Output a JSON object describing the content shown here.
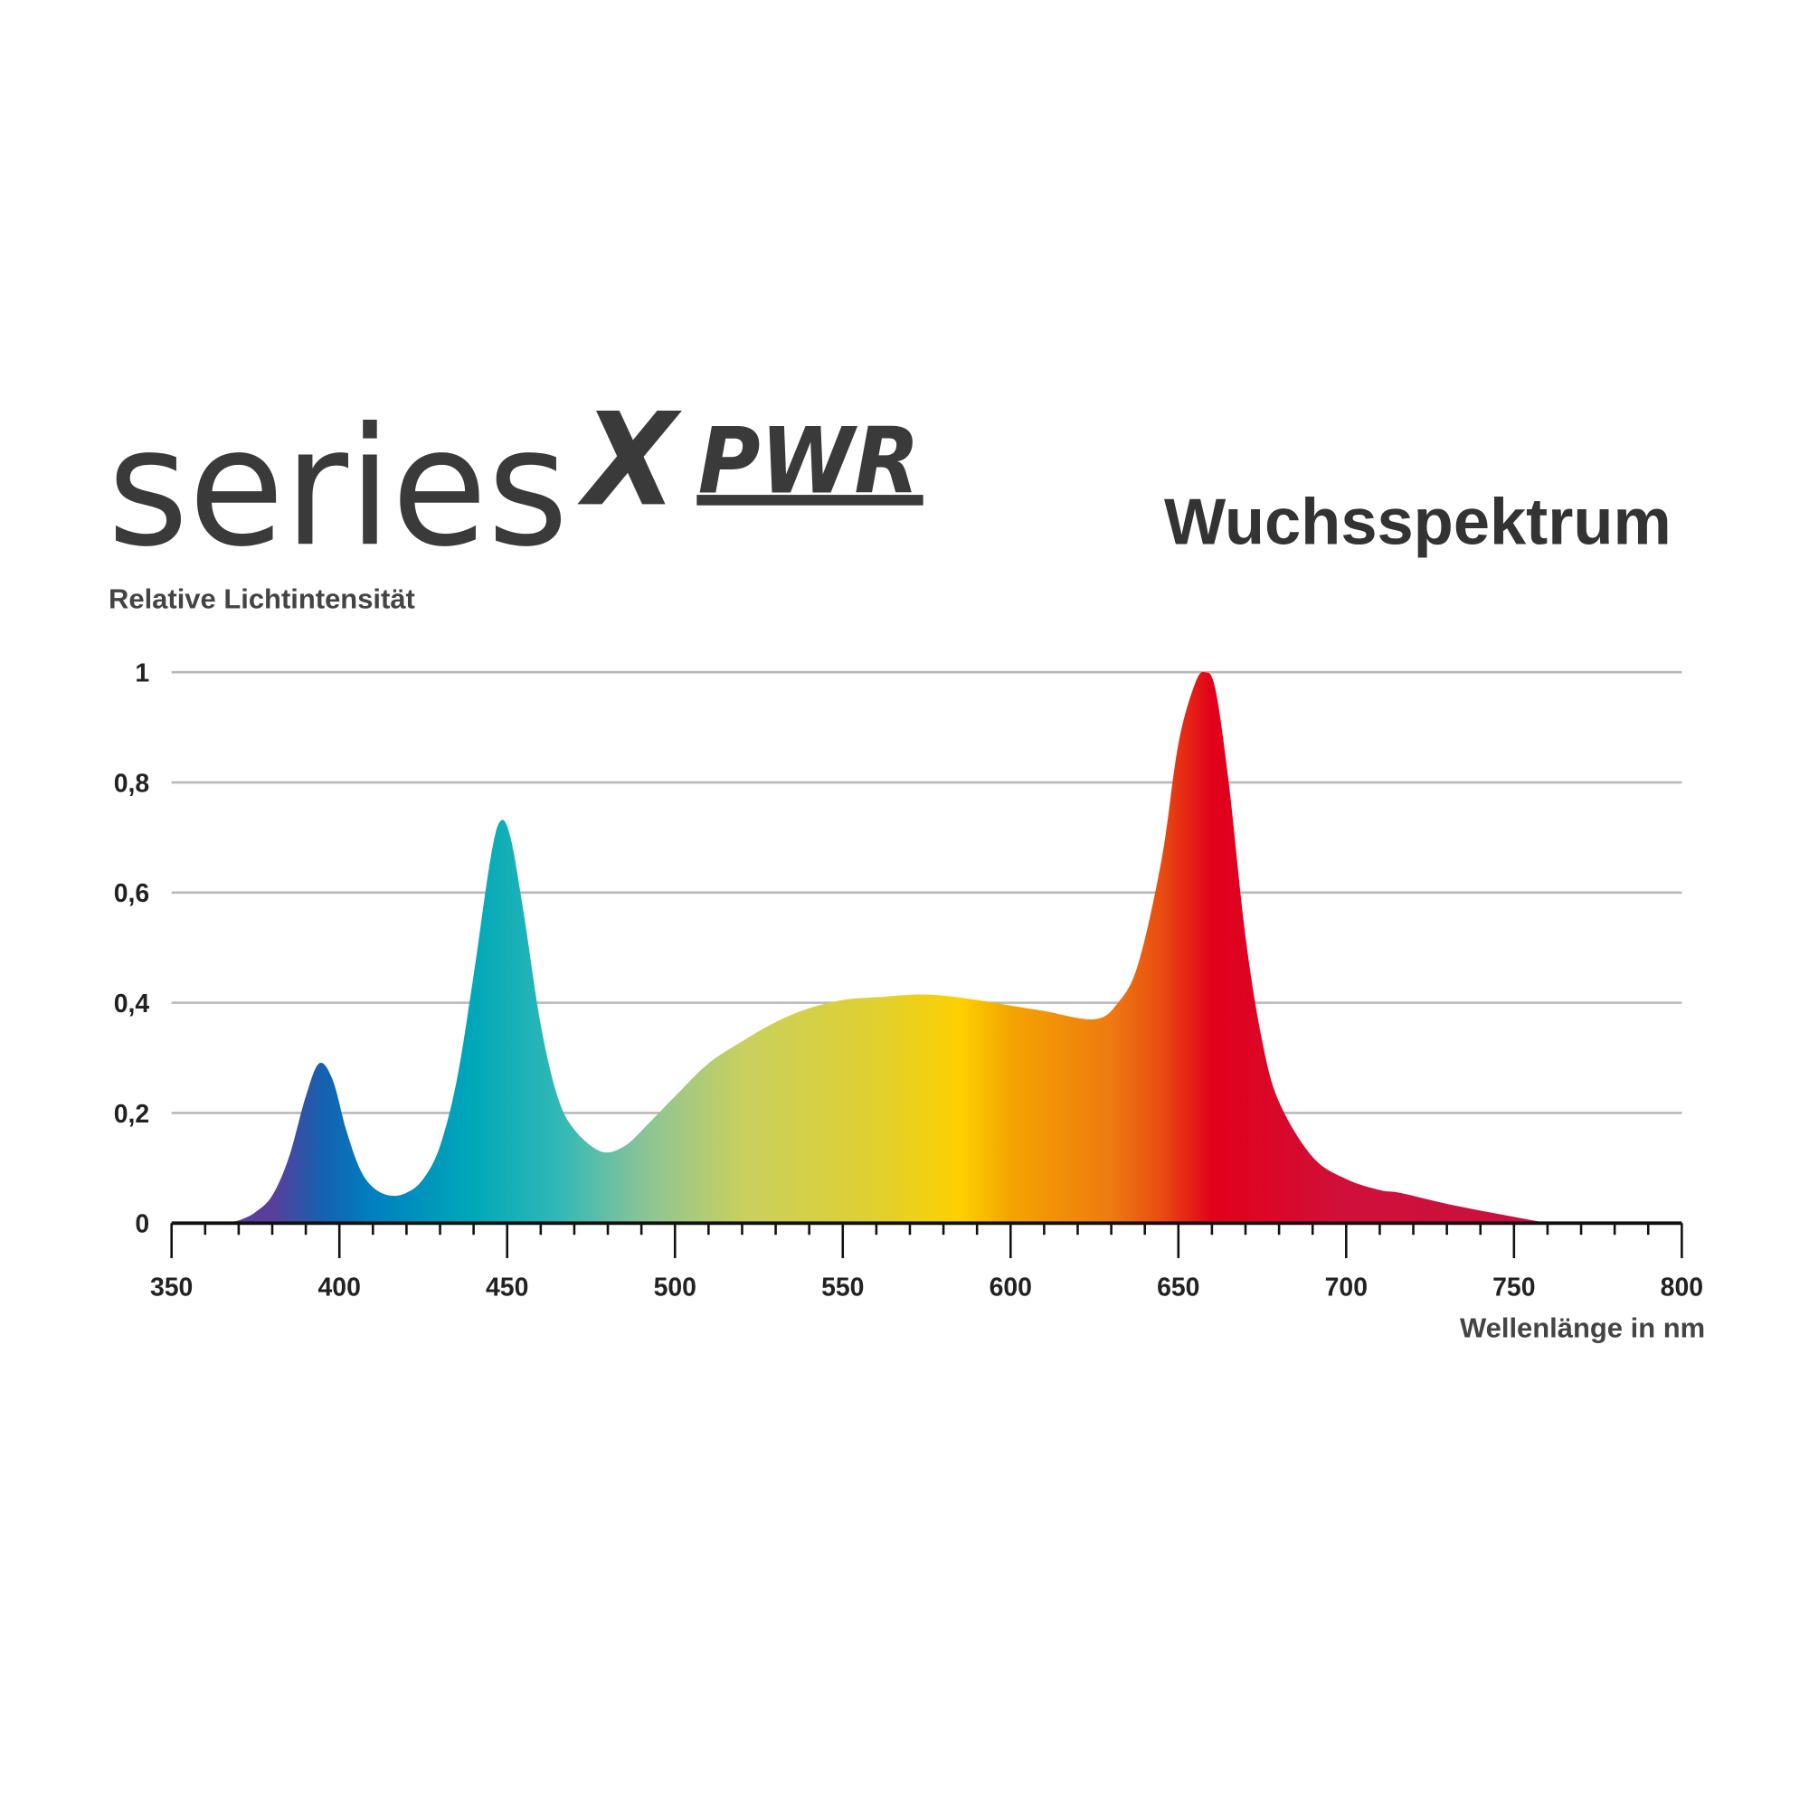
{
  "logo": {
    "text": "series",
    "mark": "X",
    "suffix": "PWR"
  },
  "chart_data": {
    "type": "area",
    "title": "Wuchsspektrum",
    "xlabel": "Wellenlänge in nm",
    "ylabel": "Relative Lichtintensität",
    "xlim": [
      350,
      800
    ],
    "ylim": [
      0,
      1
    ],
    "xticks": [
      350,
      400,
      450,
      500,
      550,
      600,
      650,
      700,
      750,
      800
    ],
    "xtick_labels": [
      "350",
      "400",
      "450",
      "500",
      "550",
      "600",
      "650",
      "700",
      "750",
      "800"
    ],
    "yticks": [
      0,
      0.2,
      0.4,
      0.6,
      0.8,
      1
    ],
    "ytick_labels": [
      "0",
      "0,2",
      "0,4",
      "0,6",
      "0,8",
      "1"
    ],
    "grid": "horizontal",
    "fill": "spectral wavelength colors",
    "x": [
      365,
      370,
      375,
      380,
      385,
      390,
      394,
      398,
      402,
      406,
      410,
      415,
      420,
      425,
      430,
      435,
      440,
      445,
      448,
      451,
      455,
      460,
      465,
      470,
      478,
      485,
      492,
      500,
      510,
      520,
      530,
      540,
      550,
      560,
      575,
      590,
      600,
      610,
      625,
      632,
      638,
      645,
      650,
      655,
      658,
      661,
      665,
      670,
      675,
      680,
      690,
      700,
      710,
      716,
      730,
      745,
      760
    ],
    "y": [
      0,
      0.005,
      0.02,
      0.05,
      0.12,
      0.23,
      0.29,
      0.26,
      0.17,
      0.1,
      0.065,
      0.05,
      0.055,
      0.08,
      0.14,
      0.26,
      0.45,
      0.66,
      0.73,
      0.7,
      0.56,
      0.36,
      0.23,
      0.17,
      0.13,
      0.14,
      0.18,
      0.23,
      0.29,
      0.33,
      0.365,
      0.39,
      0.405,
      0.41,
      0.415,
      0.405,
      0.395,
      0.385,
      0.37,
      0.4,
      0.47,
      0.66,
      0.87,
      0.98,
      1.0,
      0.97,
      0.8,
      0.52,
      0.33,
      0.22,
      0.12,
      0.08,
      0.06,
      0.055,
      0.035,
      0.017,
      0
    ],
    "colors": {
      "380": "#5a3e9c",
      "395": "#1560b0",
      "410": "#0080c0",
      "440": "#00a8b8",
      "465": "#30b8b8",
      "490": "#88c498",
      "520": "#c8d060",
      "560": "#e0d030",
      "585": "#fdd000",
      "600": "#f4a400",
      "630": "#ee7a10",
      "645": "#e84c10",
      "660": "#e2001a",
      "700": "#d0103a",
      "750": "#c8103e"
    }
  }
}
